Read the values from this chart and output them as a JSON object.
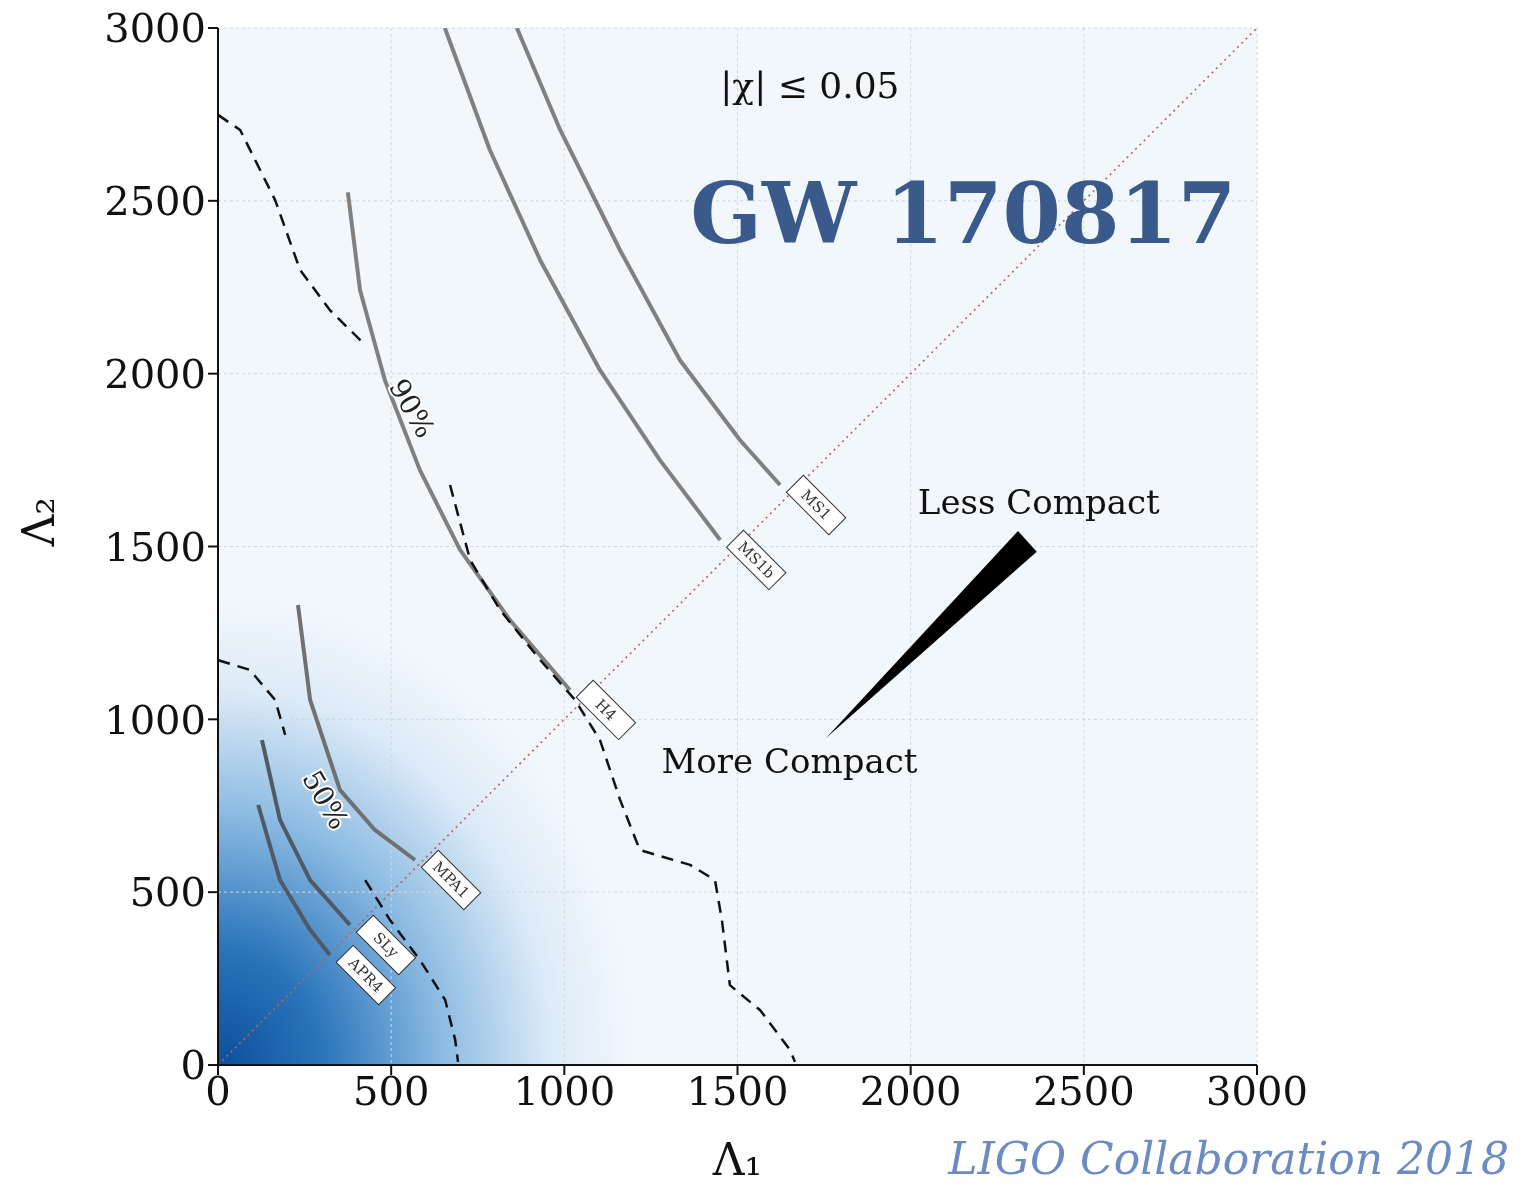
{
  "chart_data": {
    "type": "line",
    "title": "GW 170817",
    "xlabel": "Λ₁",
    "ylabel": "Λ₂",
    "xlim": [
      0,
      3000
    ],
    "ylim": [
      0,
      3000
    ],
    "xticks": [
      0,
      500,
      1000,
      1500,
      2000,
      2500,
      3000
    ],
    "yticks": [
      0,
      500,
      1000,
      1500,
      2000,
      2500,
      3000
    ],
    "grid": true,
    "legend": false,
    "marker": "none",
    "series": [
      {
        "x": [
          0,
          3000
        ],
        "values": [
          0,
          3000
        ],
        "color": "#b5655a",
        "line_style": "dotted"
      },
      {
        "name": "MS1",
        "x": [
          863,
          988,
          1161,
          1334,
          1507,
          1623
        ],
        "values": [
          3000,
          2705,
          2357,
          2039,
          1808,
          1678
        ],
        "color": "#808080",
        "line_style": "solid"
      },
      {
        "name": "MS1b",
        "x": [
          655,
          785,
          930,
          1103,
          1276,
          1450
        ],
        "values": [
          3000,
          2647,
          2329,
          2010,
          1750,
          1519
        ],
        "color": "#808080",
        "line_style": "solid"
      },
      {
        "name": "H4",
        "x": [
          375,
          410,
          482,
          583,
          699,
          843,
          1016
        ],
        "values": [
          2525,
          2242,
          1981,
          1721,
          1490,
          1287,
          1085
        ],
        "color": "#808080",
        "line_style": "solid"
      },
      {
        "name": "MPA1",
        "x": [
          231,
          266,
          352,
          453,
          569
        ],
        "values": [
          1331,
          1056,
          796,
          680,
          593
        ],
        "color": "#707070",
        "line_style": "solid"
      },
      {
        "name": "SLy",
        "x": [
          127,
          179,
          266,
          381
        ],
        "values": [
          940,
          709,
          535,
          405
        ],
        "color": "#505a66",
        "line_style": "solid"
      },
      {
        "name": "APR4",
        "x": [
          116,
          179,
          266,
          323
        ],
        "values": [
          752,
          535,
          391,
          318
        ],
        "color": "#505a66",
        "line_style": "solid"
      },
      {
        "x": [
          1,
          64,
          165,
          237,
          323,
          425,
          null,
          670,
          728,
          815,
          930,
          1031,
          1103,
          1161,
          1218,
          1363,
          1435,
          1455,
          1478,
          1565,
          1652,
          1666
        ],
        "values": [
          2748,
          2705,
          2502,
          2300,
          2184,
          2083,
          null,
          1678,
          1461,
          1316,
          1172,
          1056,
          940,
          767,
          622,
          579,
          535,
          419,
          231,
          159,
          43,
          9
        ],
        "color": "#111111",
        "line_style": "dashed"
      },
      {
        "x": [
          1,
          92,
          165,
          194,
          null,
          425,
          497,
          583,
          656,
          685,
          693
        ],
        "values": [
          1171,
          1143,
          1056,
          955,
          null,
          535,
          419,
          304,
          188,
          72,
          9
        ],
        "color": "#111111",
        "line_style": "dashed"
      }
    ],
    "annotations": [
      "90%",
      "50%",
      "|χ| ≤ 0.05",
      "Less Compact",
      "More Compact",
      "LIGO Collaboration 2018"
    ]
  }
}
